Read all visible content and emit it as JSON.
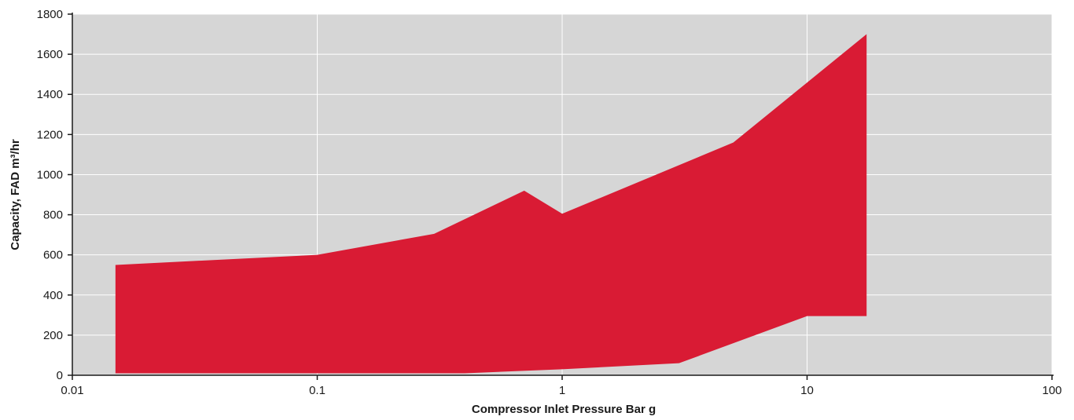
{
  "chart_data": {
    "type": "area",
    "title": "",
    "xlabel": "Compressor Inlet Pressure Bar g",
    "ylabel": "Capacity, FAD m³/hr",
    "x_scale": "log",
    "xlim": [
      0.01,
      100
    ],
    "ylim": [
      0,
      1800
    ],
    "x_ticks": [
      0.01,
      0.1,
      1,
      10,
      100
    ],
    "x_tick_labels": [
      "0.01",
      "0.1",
      "1",
      "10",
      "100"
    ],
    "y_ticks": [
      0,
      200,
      400,
      600,
      800,
      1000,
      1200,
      1400,
      1600,
      1800
    ],
    "y_tick_labels": [
      "0",
      "200",
      "400",
      "600",
      "800",
      "1000",
      "1200",
      "1400",
      "1600",
      "1800"
    ],
    "grid": true,
    "colors": {
      "fill": "#d91b34",
      "plot_background": "#d6d6d6",
      "grid": "#ffffff",
      "axis": "#1a1a1a"
    },
    "upper": [
      {
        "x": 0.015,
        "y": 550
      },
      {
        "x": 0.1,
        "y": 600
      },
      {
        "x": 0.3,
        "y": 705
      },
      {
        "x": 0.7,
        "y": 920
      },
      {
        "x": 1.0,
        "y": 805
      },
      {
        "x": 5.0,
        "y": 1160
      },
      {
        "x": 17.5,
        "y": 1700
      }
    ],
    "lower": [
      {
        "x": 0.015,
        "y": 10
      },
      {
        "x": 0.4,
        "y": 10
      },
      {
        "x": 1.0,
        "y": 30
      },
      {
        "x": 3.0,
        "y": 60
      },
      {
        "x": 10.0,
        "y": 295
      },
      {
        "x": 17.5,
        "y": 295
      }
    ]
  }
}
